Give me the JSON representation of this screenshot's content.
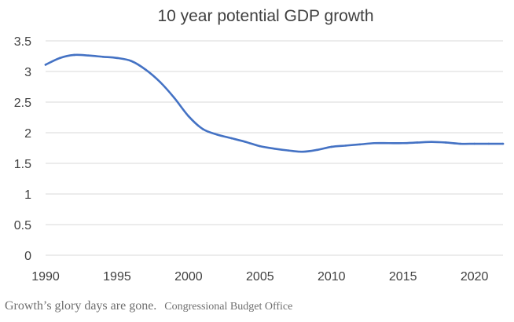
{
  "chart_data": {
    "type": "line",
    "title": "10 year potential GDP growth",
    "xlabel": "",
    "ylabel": "",
    "xlim": [
      1990,
      2022
    ],
    "ylim": [
      0,
      3.5
    ],
    "x_ticks": [
      1990,
      1995,
      2000,
      2005,
      2010,
      2015,
      2020
    ],
    "y_ticks": [
      "0",
      "0.5",
      "1",
      "1.5",
      "2",
      "2.5",
      "3",
      "3.5"
    ],
    "grid": "horizontal",
    "legend": "none",
    "series": [
      {
        "color": "#4472c4",
        "x": [
          1990,
          1991,
          1992,
          1993,
          1994,
          1995,
          1996,
          1997,
          1998,
          1999,
          2000,
          2001,
          2002,
          2003,
          2004,
          2005,
          2006,
          2007,
          2008,
          2009,
          2010,
          2011,
          2012,
          2013,
          2014,
          2015,
          2016,
          2017,
          2018,
          2019,
          2020,
          2021,
          2022
        ],
        "values": [
          3.11,
          3.22,
          3.27,
          3.26,
          3.24,
          3.22,
          3.17,
          3.03,
          2.83,
          2.57,
          2.27,
          2.06,
          1.97,
          1.91,
          1.85,
          1.78,
          1.74,
          1.71,
          1.69,
          1.72,
          1.77,
          1.79,
          1.81,
          1.83,
          1.83,
          1.83,
          1.84,
          1.85,
          1.84,
          1.82,
          1.82,
          1.82,
          1.82
        ]
      }
    ]
  },
  "caption": {
    "text": "Growth’s glory days are gone.",
    "source": "Congressional Budget Office"
  }
}
